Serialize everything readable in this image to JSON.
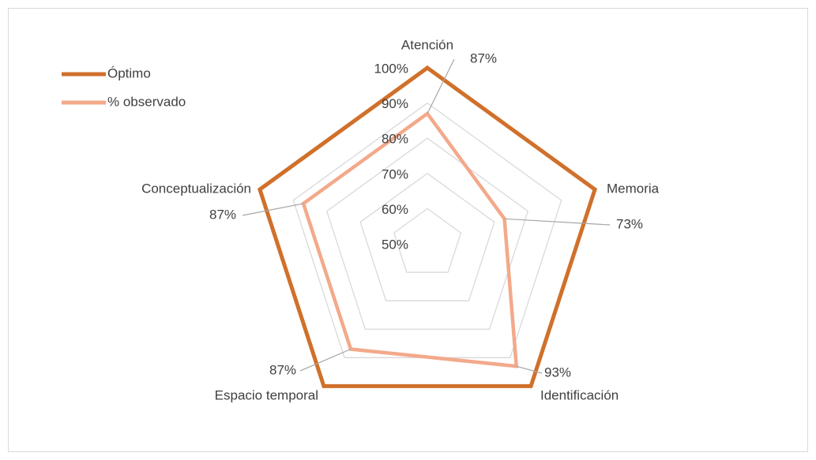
{
  "chart_data": {
    "type": "radar",
    "categories": [
      "Atención",
      "Memoria",
      "Identificación",
      "Espacio temporal",
      "Conceptualización"
    ],
    "series": [
      {
        "name": "Óptimo",
        "color": "#d0702b",
        "values": [
          100,
          100,
          100,
          100,
          100
        ]
      },
      {
        "name": "% observado",
        "color": "#f3a98a",
        "values": [
          87,
          73,
          93,
          87,
          87
        ],
        "value_labels": [
          "87%",
          "73%",
          "93%",
          "87%",
          "87%"
        ]
      }
    ],
    "rlim": [
      50,
      100
    ],
    "rticks": [
      {
        "value": 50,
        "label": "50%"
      },
      {
        "value": 60,
        "label": "60%"
      },
      {
        "value": 70,
        "label": "70%"
      },
      {
        "value": 80,
        "label": "80%"
      },
      {
        "value": 90,
        "label": "90%"
      },
      {
        "value": 100,
        "label": "100%"
      }
    ],
    "grid": true,
    "legend": "top-left"
  }
}
